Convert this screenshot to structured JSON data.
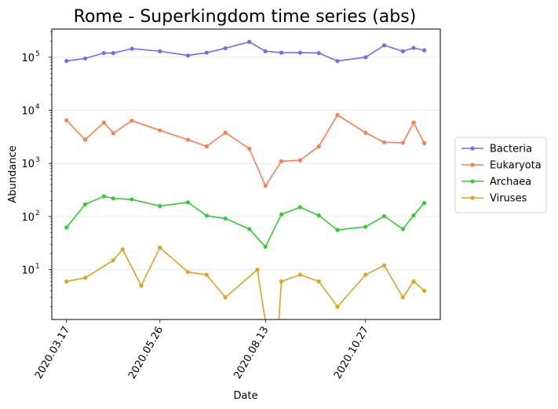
{
  "chart_data": {
    "type": "line",
    "title": "Rome - Superkingdom time series (abs)",
    "xlabel": "Date",
    "ylabel": "Abundance",
    "yscale": "log",
    "ylim": [
      1.15,
      340000
    ],
    "xlim": [
      "2020-03-06",
      "2020-12-22"
    ],
    "xticks": [
      {
        "date": "2020-03-17",
        "label": "2020.03.17"
      },
      {
        "date": "2020-05-26",
        "label": "2020.05.26"
      },
      {
        "date": "2020-08-13",
        "label": "2020.08.13"
      },
      {
        "date": "2020-10-27",
        "label": "2020.10.27"
      }
    ],
    "yticks": [
      {
        "value": 10,
        "base": "10",
        "exp": "1"
      },
      {
        "value": 100,
        "base": "10",
        "exp": "2"
      },
      {
        "value": 1000,
        "base": "10",
        "exp": "3"
      },
      {
        "value": 10000,
        "base": "10",
        "exp": "4"
      },
      {
        "value": 100000,
        "base": "10",
        "exp": "5"
      }
    ],
    "grid": "horizontal",
    "legend_position": "right",
    "x": [
      "2020-03-17",
      "2020-03-31",
      "2020-04-14",
      "2020-04-21",
      "2020-05-05",
      "2020-05-26",
      "2020-06-16",
      "2020-06-30",
      "2020-07-14",
      "2020-08-01",
      "2020-08-13",
      "2020-08-25",
      "2020-09-08",
      "2020-09-22",
      "2020-10-06",
      "2020-10-27",
      "2020-11-10",
      "2020-11-24",
      "2020-12-02",
      "2020-12-10"
    ],
    "series": [
      {
        "name": "Bacteria",
        "color": "#7b68ee",
        "values": [
          85000,
          95000,
          120000,
          120000,
          145000,
          130000,
          108000,
          122000,
          148000,
          195000,
          130000,
          122000,
          122000,
          120000,
          85000,
          100000,
          168000,
          130000,
          150000,
          135000
        ]
      },
      {
        "name": "Eukaryota",
        "color": "#f97f51",
        "values": [
          6500,
          2800,
          5900,
          3700,
          6400,
          4200,
          2800,
          2100,
          3800,
          1900,
          380,
          1100,
          1150,
          2100,
          8200,
          3800,
          2500,
          2450,
          5900,
          2400
        ]
      },
      {
        "name": "Archaea",
        "color": "#32cd32",
        "values": [
          62,
          170,
          240,
          220,
          210,
          158,
          185,
          104,
          92,
          58,
          27,
          110,
          150,
          105,
          56,
          64,
          102,
          58,
          105,
          180
        ]
      },
      {
        "name": "Viruses",
        "color": "#daa520",
        "values": [
          6,
          7,
          15,
          24,
          5,
          26,
          9,
          8,
          3,
          10,
          0,
          6,
          8,
          6,
          2,
          8,
          12,
          3,
          6,
          4
        ],
        "x": [
          "2020-03-17",
          "2020-03-31",
          "2020-04-21",
          "2020-04-28",
          "2020-05-12",
          "2020-05-26",
          "2020-06-16",
          "2020-06-30",
          "2020-07-14",
          "2020-08-07",
          "2020-08-20",
          "2020-08-25",
          "2020-09-08",
          "2020-09-22",
          "2020-10-06",
          "2020-10-27",
          "2020-11-10",
          "2020-11-24",
          "2020-12-02",
          "2020-12-10"
        ]
      }
    ]
  }
}
